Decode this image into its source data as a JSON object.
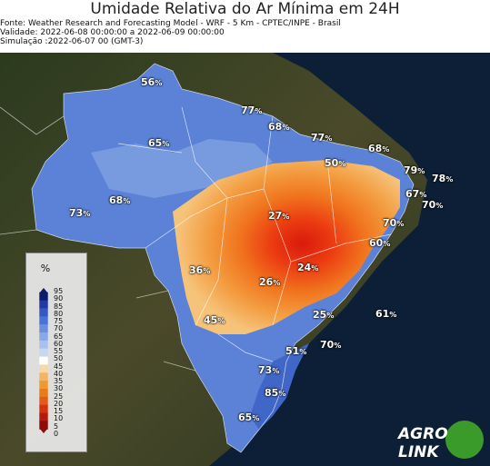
{
  "header": {
    "title": "Umidade Relativa do Ar Mínima em 24H",
    "source": "Fonte: Weather Research and Forecasting Model - WRF - 5 Km - CPTEC/INPE - Brasil",
    "validity": "Validade: 2022-06-08 00:00:00 a 2022-06-09 00:00:00",
    "simulation": "Simulação :2022-06-07 00 (GMT-3)"
  },
  "legend": {
    "title": "%",
    "ticks": [
      "95",
      "90",
      "85",
      "80",
      "75",
      "70",
      "65",
      "60",
      "55",
      "50",
      "45",
      "40",
      "35",
      "30",
      "25",
      "20",
      "15",
      "10",
      "5",
      "0"
    ],
    "colors": [
      "#0c1b6e",
      "#1f3ba3",
      "#3458c4",
      "#4a72d8",
      "#6a8ee0",
      "#8aa8e6",
      "#a9c1ec",
      "#c9d8f0",
      "#ffffff",
      "#f7d9a8",
      "#f2b565",
      "#ef9930",
      "#eb7a1c",
      "#e55a14",
      "#d6310f",
      "#b51a0d",
      "#8e0d0b"
    ]
  },
  "labels": [
    {
      "value": "56",
      "unit": "%"
    },
    {
      "value": "77",
      "unit": "%"
    },
    {
      "value": "68",
      "unit": "%"
    },
    {
      "value": "77",
      "unit": "%"
    },
    {
      "value": "65",
      "unit": "%"
    },
    {
      "value": "68",
      "unit": "%"
    },
    {
      "value": "50",
      "unit": "%"
    },
    {
      "value": "79",
      "unit": "%"
    },
    {
      "value": "78",
      "unit": "%"
    },
    {
      "value": "67",
      "unit": "%"
    },
    {
      "value": "70",
      "unit": "%"
    },
    {
      "value": "68",
      "unit": "%"
    },
    {
      "value": "73",
      "unit": "%"
    },
    {
      "value": "27",
      "unit": "%"
    },
    {
      "value": "70",
      "unit": "%"
    },
    {
      "value": "60",
      "unit": "%"
    },
    {
      "value": "36",
      "unit": "%"
    },
    {
      "value": "24",
      "unit": "%"
    },
    {
      "value": "26",
      "unit": "%"
    },
    {
      "value": "25",
      "unit": "%"
    },
    {
      "value": "61",
      "unit": "%"
    },
    {
      "value": "45",
      "unit": "%"
    },
    {
      "value": "70",
      "unit": "%"
    },
    {
      "value": "51",
      "unit": "%"
    },
    {
      "value": "73",
      "unit": "%"
    },
    {
      "value": "85",
      "unit": "%"
    },
    {
      "value": "65",
      "unit": "%"
    }
  ],
  "logo": {
    "text": "AGRO LINK"
  }
}
